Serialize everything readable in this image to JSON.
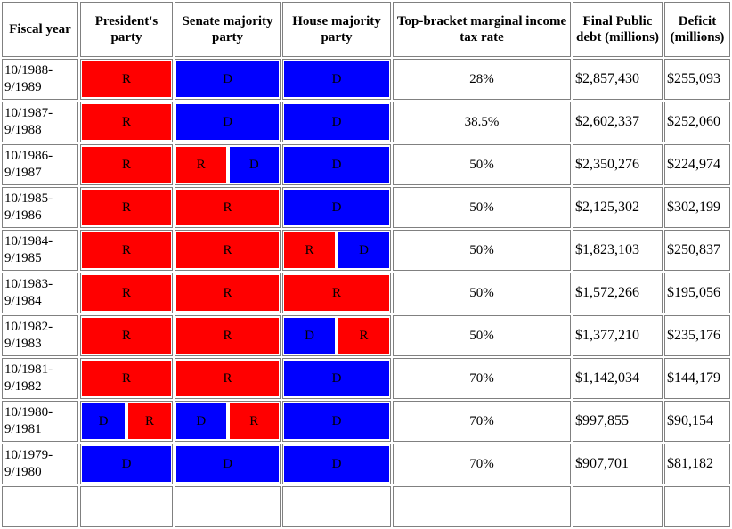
{
  "table": {
    "columns": [
      "Fiscal year",
      "President's party",
      "Senate majority party",
      "House majority party",
      "Top-bracket marginal income tax rate",
      "Final Public debt (millions)",
      "Deficit (millions)"
    ],
    "rows": [
      {
        "fiscal_year": "10/1988-9/1989",
        "president": [
          "R"
        ],
        "senate": [
          "D"
        ],
        "house": [
          "D"
        ],
        "tax_rate": "28%",
        "debt": "$2,857,430",
        "deficit": "$255,093"
      },
      {
        "fiscal_year": "10/1987-9/1988",
        "president": [
          "R"
        ],
        "senate": [
          "D"
        ],
        "house": [
          "D"
        ],
        "tax_rate": "38.5%",
        "debt": "$2,602,337",
        "deficit": "$252,060"
      },
      {
        "fiscal_year": "10/1986-9/1987",
        "president": [
          "R"
        ],
        "senate": [
          "R",
          "D"
        ],
        "house": [
          "D"
        ],
        "tax_rate": "50%",
        "debt": "$2,350,276",
        "deficit": "$224,974"
      },
      {
        "fiscal_year": "10/1985-9/1986",
        "president": [
          "R"
        ],
        "senate": [
          "R"
        ],
        "house": [
          "D"
        ],
        "tax_rate": "50%",
        "debt": "$2,125,302",
        "deficit": "$302,199"
      },
      {
        "fiscal_year": "10/1984-9/1985",
        "president": [
          "R"
        ],
        "senate": [
          "R"
        ],
        "house": [
          "R",
          "D"
        ],
        "tax_rate": "50%",
        "debt": "$1,823,103",
        "deficit": "$250,837"
      },
      {
        "fiscal_year": "10/1983-9/1984",
        "president": [
          "R"
        ],
        "senate": [
          "R"
        ],
        "house": [
          "R"
        ],
        "tax_rate": "50%",
        "debt": "$1,572,266",
        "deficit": "$195,056"
      },
      {
        "fiscal_year": "10/1982-9/1983",
        "president": [
          "R"
        ],
        "senate": [
          "R"
        ],
        "house": [
          "D",
          "R"
        ],
        "tax_rate": "50%",
        "debt": "$1,377,210",
        "deficit": "$235,176"
      },
      {
        "fiscal_year": "10/1981-9/1982",
        "president": [
          "R"
        ],
        "senate": [
          "R"
        ],
        "house": [
          "D"
        ],
        "tax_rate": "70%",
        "debt": "$1,142,034",
        "deficit": "$144,179"
      },
      {
        "fiscal_year": "10/1980-9/1981",
        "president": [
          "D",
          "R"
        ],
        "senate": [
          "D",
          "R"
        ],
        "house": [
          "D"
        ],
        "tax_rate": "70%",
        "debt": "$997,855",
        "deficit": "$90,154"
      },
      {
        "fiscal_year": "10/1979-9/1980",
        "president": [
          "D"
        ],
        "senate": [
          "D"
        ],
        "house": [
          "D"
        ],
        "tax_rate": "70%",
        "debt": "$907,701",
        "deficit": "$81,182"
      }
    ]
  },
  "colors": {
    "R": "#ff0000",
    "D": "#0000ff",
    "border": "#808080",
    "text": "#000000"
  }
}
